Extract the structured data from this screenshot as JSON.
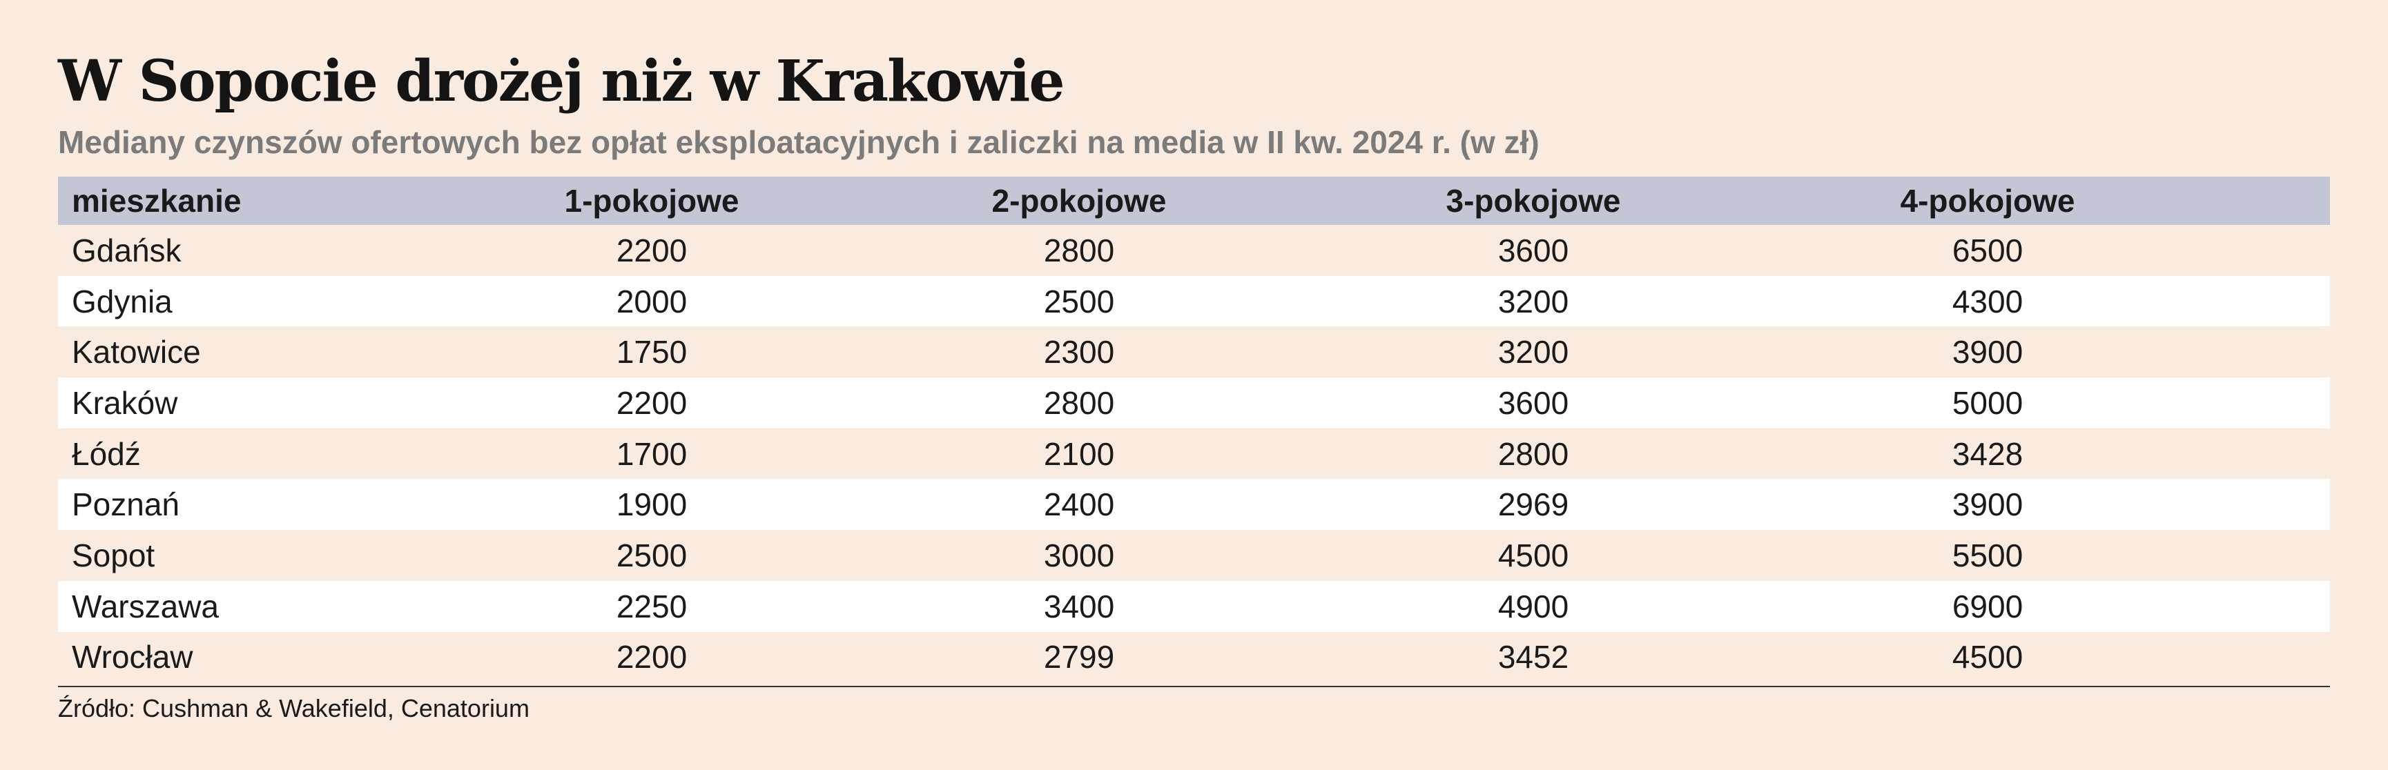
{
  "title": "W Sopocie drożej niż w Krakowie",
  "subtitle": "Mediany czynszów ofertowych bez opłat eksploatacyjnych i zaliczki na media w II kw. 2024 r. (w zł)",
  "source": "Źródło: Cushman & Wakefield, Cenatorium",
  "colors": {
    "background": "#f9ebdf",
    "header_background": "#c3c6d4",
    "stripe_background": "#ffffff",
    "subtitle_text": "#7b7b7b"
  },
  "chart_data": {
    "type": "table",
    "title": "W Sopocie drożej niż w Krakowie",
    "subtitle": "Mediany czynszów ofertowych bez opłat eksploatacyjnych i zaliczki na media w II kw. 2024 r. (w zł)",
    "columns": [
      "mieszkanie",
      "1-pokojowe",
      "2-pokojowe",
      "3-pokojowe",
      "4-pokojowe"
    ],
    "rows": [
      [
        "Gdańsk",
        "2200",
        "2800",
        "3600",
        "6500"
      ],
      [
        "Gdynia",
        "2000",
        "2500",
        "3200",
        "4300"
      ],
      [
        "Katowice",
        "1750",
        "2300",
        "3200",
        "3900"
      ],
      [
        "Kraków",
        "2200",
        "2800",
        "3600",
        "5000"
      ],
      [
        "Łódź",
        "1700",
        "2100",
        "2800",
        "3428"
      ],
      [
        "Poznań",
        "1900",
        "2400",
        "2969",
        "3900"
      ],
      [
        "Sopot",
        "2500",
        "3000",
        "4500",
        "5500"
      ],
      [
        "Warszawa",
        "2250",
        "3400",
        "4900",
        "6900"
      ],
      [
        "Wrocław",
        "2200",
        "2799",
        "3452",
        "4500"
      ]
    ]
  }
}
